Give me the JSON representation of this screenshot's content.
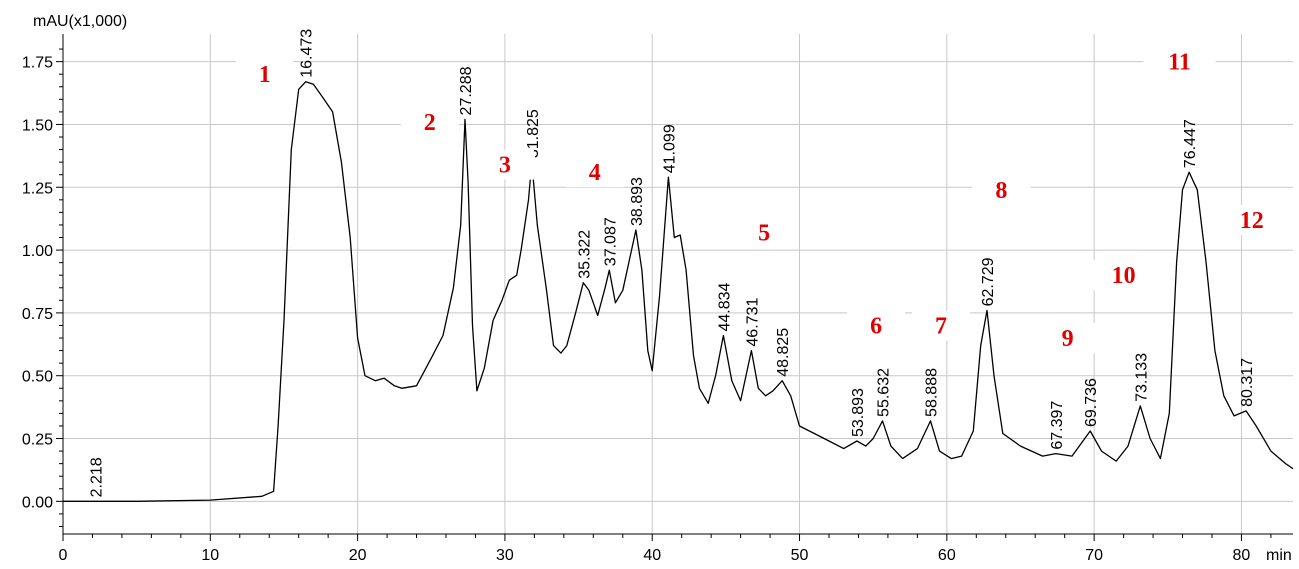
{
  "chart_data": {
    "type": "line",
    "ylabel": "mAU(x1,000)",
    "xlabel_unit": "min",
    "xlim": [
      0,
      83.5
    ],
    "ylim": [
      -0.13,
      1.86
    ],
    "x_ticks": [
      0,
      10,
      20,
      30,
      40,
      50,
      60,
      70,
      80
    ],
    "x_tick_labels": [
      "0",
      "10",
      "20",
      "30",
      "40",
      "50",
      "60",
      "70",
      "80"
    ],
    "y_ticks": [
      0.0,
      0.25,
      0.5,
      0.75,
      1.0,
      1.25,
      1.5,
      1.75
    ],
    "y_tick_labels": [
      "0.00",
      "0.25",
      "0.50",
      "0.75",
      "1.00",
      "1.25",
      "1.50",
      "1.75"
    ],
    "grid": true,
    "series": [
      {
        "color": "#000000",
        "points": [
          [
            0,
            0.0
          ],
          [
            2.218,
            0.0
          ],
          [
            5,
            0.0
          ],
          [
            10,
            0.005
          ],
          [
            13.5,
            0.02
          ],
          [
            14.3,
            0.04
          ],
          [
            14.6,
            0.3
          ],
          [
            15.0,
            0.72
          ],
          [
            15.5,
            1.4
          ],
          [
            16.0,
            1.64
          ],
          [
            16.473,
            1.67
          ],
          [
            17.0,
            1.66
          ],
          [
            17.6,
            1.61
          ],
          [
            18.3,
            1.55
          ],
          [
            18.9,
            1.35
          ],
          [
            19.5,
            1.05
          ],
          [
            20.0,
            0.65
          ],
          [
            20.5,
            0.5
          ],
          [
            21.2,
            0.48
          ],
          [
            21.8,
            0.49
          ],
          [
            22.5,
            0.46
          ],
          [
            23.0,
            0.45
          ],
          [
            24.0,
            0.46
          ],
          [
            25.0,
            0.57
          ],
          [
            25.8,
            0.66
          ],
          [
            26.5,
            0.85
          ],
          [
            27.0,
            1.1
          ],
          [
            27.288,
            1.52
          ],
          [
            27.5,
            1.27
          ],
          [
            27.8,
            0.7
          ],
          [
            28.1,
            0.44
          ],
          [
            28.6,
            0.53
          ],
          [
            29.2,
            0.72
          ],
          [
            29.8,
            0.8
          ],
          [
            30.3,
            0.88
          ],
          [
            30.8,
            0.9
          ],
          [
            31.1,
            1.0
          ],
          [
            31.35,
            1.1
          ],
          [
            31.6,
            1.2
          ],
          [
            31.825,
            1.35
          ],
          [
            32.2,
            1.1
          ],
          [
            32.8,
            0.85
          ],
          [
            33.3,
            0.62
          ],
          [
            33.8,
            0.59
          ],
          [
            34.2,
            0.62
          ],
          [
            34.8,
            0.75
          ],
          [
            35.322,
            0.87
          ],
          [
            35.7,
            0.84
          ],
          [
            36.3,
            0.74
          ],
          [
            36.8,
            0.85
          ],
          [
            37.087,
            0.92
          ],
          [
            37.5,
            0.79
          ],
          [
            38.0,
            0.84
          ],
          [
            38.893,
            1.08
          ],
          [
            39.3,
            0.92
          ],
          [
            39.7,
            0.6
          ],
          [
            40.0,
            0.52
          ],
          [
            40.5,
            0.82
          ],
          [
            41.099,
            1.29
          ],
          [
            41.5,
            1.05
          ],
          [
            41.9,
            1.06
          ],
          [
            42.3,
            0.92
          ],
          [
            42.8,
            0.58
          ],
          [
            43.2,
            0.45
          ],
          [
            43.8,
            0.39
          ],
          [
            44.3,
            0.5
          ],
          [
            44.834,
            0.66
          ],
          [
            45.4,
            0.48
          ],
          [
            46.0,
            0.4
          ],
          [
            46.731,
            0.6
          ],
          [
            47.2,
            0.45
          ],
          [
            47.7,
            0.42
          ],
          [
            48.2,
            0.44
          ],
          [
            48.825,
            0.48
          ],
          [
            49.4,
            0.42
          ],
          [
            50.0,
            0.3
          ],
          [
            51.0,
            0.27
          ],
          [
            52.0,
            0.24
          ],
          [
            53.0,
            0.21
          ],
          [
            53.893,
            0.24
          ],
          [
            54.5,
            0.22
          ],
          [
            55.0,
            0.25
          ],
          [
            55.632,
            0.32
          ],
          [
            56.2,
            0.22
          ],
          [
            57.0,
            0.17
          ],
          [
            58.0,
            0.21
          ],
          [
            58.888,
            0.32
          ],
          [
            59.5,
            0.2
          ],
          [
            60.3,
            0.17
          ],
          [
            61.0,
            0.18
          ],
          [
            61.8,
            0.28
          ],
          [
            62.3,
            0.62
          ],
          [
            62.729,
            0.76
          ],
          [
            63.2,
            0.5
          ],
          [
            63.8,
            0.27
          ],
          [
            65.0,
            0.22
          ],
          [
            66.5,
            0.18
          ],
          [
            67.397,
            0.19
          ],
          [
            68.5,
            0.18
          ],
          [
            69.736,
            0.28
          ],
          [
            70.5,
            0.2
          ],
          [
            71.5,
            0.16
          ],
          [
            72.3,
            0.22
          ],
          [
            73.133,
            0.38
          ],
          [
            73.8,
            0.25
          ],
          [
            74.5,
            0.17
          ],
          [
            75.1,
            0.35
          ],
          [
            75.6,
            0.95
          ],
          [
            76.0,
            1.24
          ],
          [
            76.447,
            1.31
          ],
          [
            77.0,
            1.24
          ],
          [
            77.6,
            0.95
          ],
          [
            78.2,
            0.6
          ],
          [
            78.8,
            0.42
          ],
          [
            79.5,
            0.34
          ],
          [
            80.317,
            0.36
          ],
          [
            81.0,
            0.3
          ],
          [
            82.0,
            0.2
          ],
          [
            83.0,
            0.15
          ],
          [
            83.5,
            0.13
          ]
        ]
      }
    ],
    "peak_labels": [
      {
        "text": "2.218",
        "x": 2.218,
        "y": 0.0
      },
      {
        "text": "16.473",
        "x": 16.473,
        "y": 1.67
      },
      {
        "text": "27.288",
        "x": 27.288,
        "y": 1.52
      },
      {
        "text": "31.825",
        "x": 31.825,
        "y": 1.35
      },
      {
        "text": "35.322",
        "x": 35.322,
        "y": 0.87
      },
      {
        "text": "37.087",
        "x": 37.087,
        "y": 0.92
      },
      {
        "text": "38.893",
        "x": 38.893,
        "y": 1.08
      },
      {
        "text": "41.099",
        "x": 41.099,
        "y": 1.29
      },
      {
        "text": "44.834",
        "x": 44.834,
        "y": 0.66
      },
      {
        "text": "46.731",
        "x": 46.731,
        "y": 0.6
      },
      {
        "text": "48.825",
        "x": 48.825,
        "y": 0.48
      },
      {
        "text": "53.893",
        "x": 53.893,
        "y": 0.24
      },
      {
        "text": "55.632",
        "x": 55.632,
        "y": 0.32
      },
      {
        "text": "58.888",
        "x": 58.888,
        "y": 0.32
      },
      {
        "text": "62.729",
        "x": 62.729,
        "y": 0.76
      },
      {
        "text": "67.397",
        "x": 67.397,
        "y": 0.19
      },
      {
        "text": "69.736",
        "x": 69.736,
        "y": 0.28
      },
      {
        "text": "73.133",
        "x": 73.133,
        "y": 0.38
      },
      {
        "text": "76.447",
        "x": 76.447,
        "y": 1.31
      },
      {
        "text": "80.317",
        "x": 80.317,
        "y": 0.36
      }
    ],
    "annotations": [
      {
        "text": "1",
        "x": 13.7,
        "y": 1.68
      },
      {
        "text": "2",
        "x": 24.9,
        "y": 1.49
      },
      {
        "text": "3",
        "x": 30.0,
        "y": 1.32
      },
      {
        "text": "4",
        "x": 36.1,
        "y": 1.29
      },
      {
        "text": "5",
        "x": 47.6,
        "y": 1.05
      },
      {
        "text": "6",
        "x": 55.2,
        "y": 0.68
      },
      {
        "text": "7",
        "x": 59.6,
        "y": 0.68
      },
      {
        "text": "8",
        "x": 63.7,
        "y": 1.22
      },
      {
        "text": "9",
        "x": 68.2,
        "y": 0.63
      },
      {
        "text": "10",
        "x": 72.0,
        "y": 0.88
      },
      {
        "text": "11",
        "x": 75.8,
        "y": 1.73
      },
      {
        "text": "12",
        "x": 80.7,
        "y": 1.1
      }
    ],
    "line_color": "#000000",
    "grid_color": "#c8c8c8",
    "annotation_color": "#e00000"
  }
}
